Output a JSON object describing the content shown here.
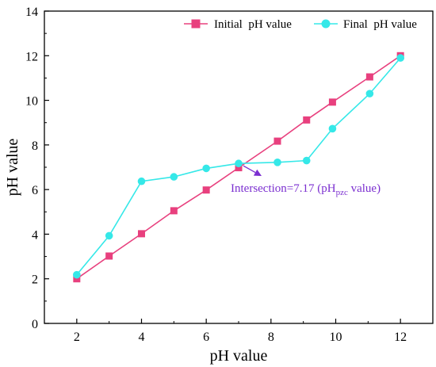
{
  "chart_data": {
    "type": "line",
    "xlabel": "pH value",
    "ylabel": "pH value",
    "xlim": [
      1,
      13
    ],
    "ylim": [
      0,
      14
    ],
    "xticks": [
      "2",
      "4",
      "6",
      "8",
      "10",
      "12"
    ],
    "yticks": [
      "0",
      "2",
      "4",
      "6",
      "8",
      "10",
      "12",
      "14"
    ],
    "grid": false,
    "legend_position": "top-right",
    "series": [
      {
        "name": "Initial  pH value",
        "color": "#e8407e",
        "marker": "square",
        "x": [
          2,
          3,
          4,
          5,
          6,
          7,
          8.2,
          9.1,
          9.9,
          11.05,
          12
        ],
        "y": [
          2.0,
          3.02,
          4.02,
          5.05,
          5.98,
          6.98,
          8.17,
          9.12,
          9.92,
          11.05,
          12.0
        ]
      },
      {
        "name": "Final  pH value",
        "color": "#35e8e8",
        "marker": "circle",
        "x": [
          2,
          3,
          4,
          5,
          6,
          7,
          8.2,
          9.1,
          9.9,
          11.05,
          12
        ],
        "y": [
          2.18,
          3.93,
          6.37,
          6.57,
          6.95,
          7.17,
          7.22,
          7.3,
          8.73,
          10.3,
          11.9
        ]
      }
    ],
    "annotation": {
      "text_main": "Intersection=7.17 (pH",
      "text_sub": "pzc",
      "text_end": " value)",
      "color": "#7b2fd0",
      "point_x": 7.05,
      "point_y": 7.17
    }
  }
}
